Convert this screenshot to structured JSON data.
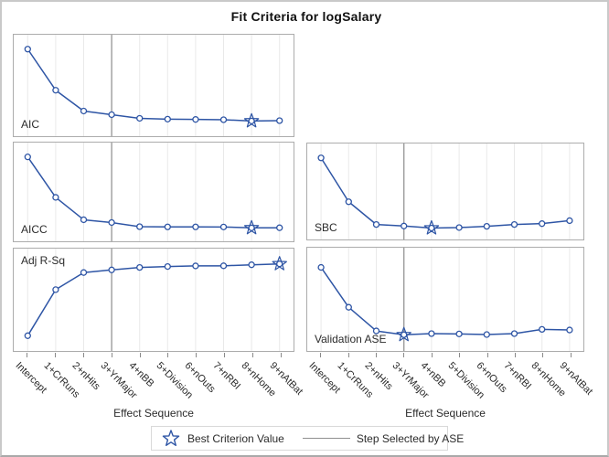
{
  "title": "Fit Criteria for logSalary",
  "xaxis": {
    "label": "Effect Sequence",
    "categories": [
      "Intercept",
      "1+CrRuns",
      "2+nHits",
      "3+YrMajor",
      "4+nBB",
      "5+Division",
      "6+nOuts",
      "7+nRBI",
      "8+nHome",
      "9+nAtBat"
    ]
  },
  "legend": {
    "best_label": "Best Criterion Value",
    "step_label": "Step Selected by ASE"
  },
  "colors": {
    "line": "#2E55A5",
    "marker_fill": "#FFFFFF",
    "grid": "#E9E9E9",
    "refline": "#9C9C9C",
    "panel_border": "#ACACAC",
    "text": "#2B2B2B"
  },
  "ref_line": {
    "category": "3+YrMajor",
    "index": 3
  },
  "chart_data": [
    {
      "type": "line",
      "title": "AIC",
      "categories": [
        "Intercept",
        "1+CrRuns",
        "2+nHits",
        "3+YrMajor",
        "4+nBB",
        "5+Division",
        "6+nOuts",
        "7+nRBI",
        "8+nHome",
        "9+nAtBat"
      ],
      "values_norm": [
        0.858,
        0.453,
        0.248,
        0.212,
        0.176,
        0.168,
        0.165,
        0.162,
        0.15,
        0.153
      ],
      "best_index": 8,
      "best_category": "8+nHome",
      "xlabel": "Effect Sequence",
      "ylabel": "",
      "yaxis_ticks_shown": false
    },
    {
      "type": "line",
      "title": "AICC",
      "categories": [
        "Intercept",
        "1+CrRuns",
        "2+nHits",
        "3+YrMajor",
        "4+nBB",
        "5+Division",
        "6+nOuts",
        "7+nRBI",
        "8+nHome",
        "9+nAtBat"
      ],
      "values_norm": [
        0.855,
        0.445,
        0.218,
        0.19,
        0.148,
        0.146,
        0.146,
        0.145,
        0.136,
        0.137
      ],
      "best_index": 8,
      "best_category": "8+nHome",
      "xlabel": "Effect Sequence",
      "ylabel": "",
      "yaxis_ticks_shown": false
    },
    {
      "type": "line",
      "title": "Adj R-Sq",
      "categories": [
        "Intercept",
        "1+CrRuns",
        "2+nHits",
        "3+YrMajor",
        "4+nBB",
        "5+Division",
        "6+nOuts",
        "7+nRBI",
        "8+nHome",
        "9+nAtBat"
      ],
      "values_norm": [
        0.149,
        0.599,
        0.766,
        0.792,
        0.816,
        0.825,
        0.831,
        0.832,
        0.842,
        0.851
      ],
      "best_index": 9,
      "best_category": "9+nAtBat",
      "xlabel": "Effect Sequence",
      "ylabel": "",
      "yaxis_ticks_shown": false
    },
    {
      "type": "line",
      "title": "SBC",
      "categories": [
        "Intercept",
        "1+CrRuns",
        "2+nHits",
        "3+YrMajor",
        "4+nBB",
        "5+Division",
        "6+nOuts",
        "7+nRBI",
        "8+nHome",
        "9+nAtBat"
      ],
      "values_norm": [
        0.85,
        0.393,
        0.156,
        0.14,
        0.119,
        0.124,
        0.137,
        0.156,
        0.165,
        0.196
      ],
      "best_index": 4,
      "best_category": "4+nBB",
      "xlabel": "Effect Sequence",
      "ylabel": "",
      "yaxis_ticks_shown": false
    },
    {
      "type": "line",
      "title": "Validation ASE",
      "categories": [
        "Intercept",
        "1+CrRuns",
        "2+nHits",
        "3+YrMajor",
        "4+nBB",
        "5+Division",
        "6+nOuts",
        "7+nRBI",
        "8+nHome",
        "9+nAtBat"
      ],
      "values_norm": [
        0.809,
        0.423,
        0.194,
        0.157,
        0.168,
        0.165,
        0.159,
        0.168,
        0.209,
        0.203
      ],
      "best_index": 3,
      "best_category": "3+YrMajor",
      "xlabel": "Effect Sequence",
      "ylabel": "",
      "yaxis_ticks_shown": false
    }
  ]
}
